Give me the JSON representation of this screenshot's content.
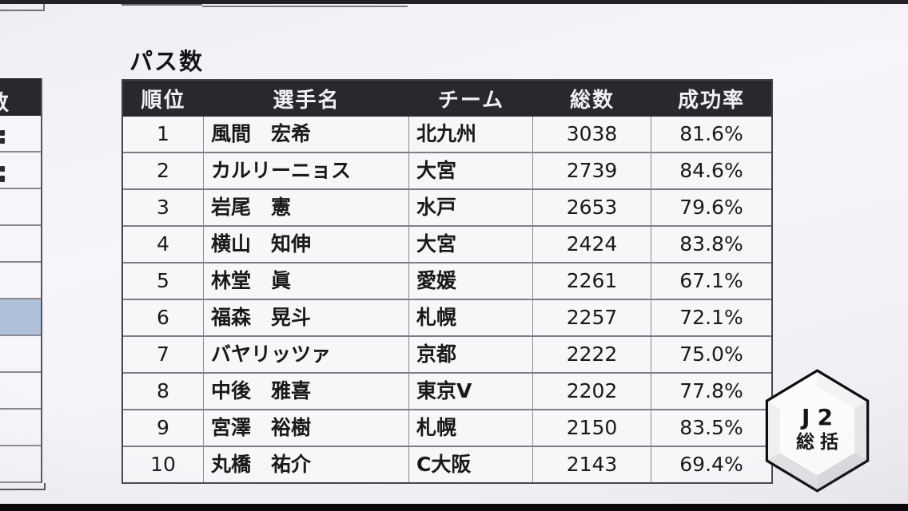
{
  "table": {
    "title": "パス数",
    "columns": [
      "順位",
      "選手名",
      "チーム",
      "総数",
      "成功率"
    ],
    "rows": [
      {
        "rank": "1",
        "name": "風間　宏希",
        "team": "北九州",
        "total": "3038",
        "rate": "81.6%"
      },
      {
        "rank": "2",
        "name": "カルリーニョス",
        "team": "大宮",
        "total": "2739",
        "rate": "84.6%"
      },
      {
        "rank": "3",
        "name": "岩尾　憲",
        "team": "水戸",
        "total": "2653",
        "rate": "79.6%"
      },
      {
        "rank": "4",
        "name": "横山　知伸",
        "team": "大宮",
        "total": "2424",
        "rate": "83.8%"
      },
      {
        "rank": "5",
        "name": "林堂　眞",
        "team": "愛媛",
        "total": "2261",
        "rate": "67.1%"
      },
      {
        "rank": "6",
        "name": "福森　晃斗",
        "team": "札幌",
        "total": "2257",
        "rate": "72.1%"
      },
      {
        "rank": "7",
        "name": "バヤリッツァ",
        "team": "京都",
        "total": "2222",
        "rate": "75.0%"
      },
      {
        "rank": "8",
        "name": "中後　雅喜",
        "team": "東京V",
        "total": "2202",
        "rate": "77.8%"
      },
      {
        "rank": "9",
        "name": "宮澤　裕樹",
        "team": "札幌",
        "total": "2150",
        "rate": "83.5%"
      },
      {
        "rank": "10",
        "name": "丸橋　祐介",
        "team": "C大阪",
        "total": "2143",
        "rate": "69.4%"
      }
    ]
  },
  "left_table": {
    "header_partial": "数",
    "row_count": 10,
    "highlight_row_index": 5,
    "highlight_color": "#aec1d8"
  },
  "badge": {
    "line1": "J2",
    "line2": "総括"
  },
  "colors": {
    "header_bg": "#2a282c",
    "header_text": "#f2f1f4",
    "row_bg": "#f8f6f9",
    "body_text": "#19181b",
    "grid_line": "#85838c",
    "highlight_cell": "#aec1d8"
  }
}
